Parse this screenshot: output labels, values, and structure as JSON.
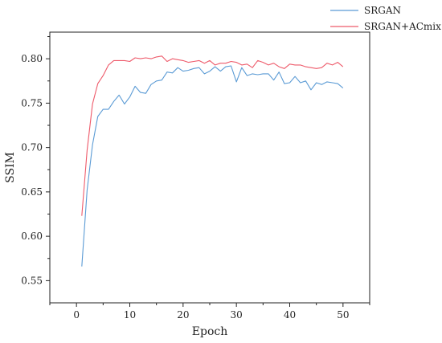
{
  "chart_data": {
    "type": "line",
    "title": "",
    "xlabel": "Epoch",
    "ylabel": "SSIM",
    "xlim": [
      -5,
      55
    ],
    "ylim": [
      0.525,
      0.83
    ],
    "xticks": [
      0,
      10,
      20,
      30,
      40,
      50
    ],
    "yticks": [
      0.55,
      0.6,
      0.65,
      0.7,
      0.75,
      0.8
    ],
    "ytick_labels": [
      "0.55",
      "0.60",
      "0.65",
      "0.70",
      "0.75",
      "0.80"
    ],
    "grid": false,
    "legend_position": "top-right",
    "series": [
      {
        "name": "SRGAN",
        "color": "#5b9bd5",
        "x": [
          1,
          2,
          3,
          4,
          5,
          6,
          7,
          8,
          9,
          10,
          11,
          12,
          13,
          14,
          15,
          16,
          17,
          18,
          19,
          20,
          21,
          22,
          23,
          24,
          25,
          26,
          27,
          28,
          29,
          30,
          31,
          32,
          33,
          34,
          35,
          36,
          37,
          38,
          39,
          40,
          41,
          42,
          43,
          44,
          45,
          46,
          47,
          48,
          49,
          50
        ],
        "values": [
          0.566,
          0.652,
          0.703,
          0.735,
          0.743,
          0.743,
          0.752,
          0.759,
          0.749,
          0.757,
          0.769,
          0.762,
          0.761,
          0.771,
          0.775,
          0.776,
          0.785,
          0.784,
          0.79,
          0.786,
          0.787,
          0.789,
          0.79,
          0.783,
          0.786,
          0.791,
          0.786,
          0.791,
          0.792,
          0.774,
          0.79,
          0.781,
          0.783,
          0.782,
          0.783,
          0.783,
          0.776,
          0.785,
          0.772,
          0.773,
          0.78,
          0.773,
          0.775,
          0.765,
          0.773,
          0.771,
          0.774,
          0.773,
          0.772,
          0.767
        ]
      },
      {
        "name": "SRGAN+ACmix",
        "color": "#ee5a6a",
        "x": [
          1,
          2,
          3,
          4,
          5,
          6,
          7,
          8,
          9,
          10,
          11,
          12,
          13,
          14,
          15,
          16,
          17,
          18,
          19,
          20,
          21,
          22,
          23,
          24,
          25,
          26,
          27,
          28,
          29,
          30,
          31,
          32,
          33,
          34,
          35,
          36,
          37,
          38,
          39,
          40,
          41,
          42,
          43,
          44,
          45,
          46,
          47,
          48,
          49,
          50
        ],
        "values": [
          0.623,
          0.697,
          0.749,
          0.772,
          0.781,
          0.793,
          0.798,
          0.798,
          0.798,
          0.797,
          0.801,
          0.8,
          0.801,
          0.8,
          0.802,
          0.803,
          0.797,
          0.8,
          0.799,
          0.798,
          0.796,
          0.797,
          0.798,
          0.795,
          0.798,
          0.793,
          0.795,
          0.795,
          0.797,
          0.796,
          0.793,
          0.794,
          0.79,
          0.798,
          0.796,
          0.793,
          0.795,
          0.791,
          0.789,
          0.794,
          0.793,
          0.793,
          0.791,
          0.79,
          0.789,
          0.79,
          0.795,
          0.793,
          0.796,
          0.791
        ]
      }
    ]
  }
}
